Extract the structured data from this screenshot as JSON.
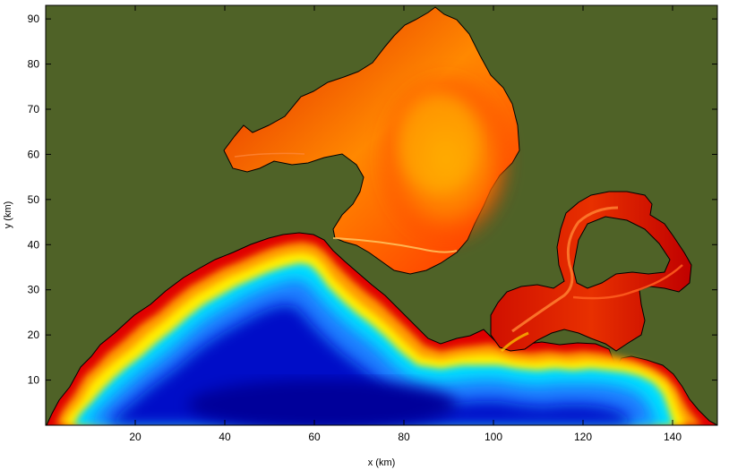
{
  "chart_data": {
    "type": "heatmap",
    "title": "",
    "xlabel": "x (km)",
    "ylabel": "y (km)",
    "xlim": [
      0,
      150
    ],
    "ylim": [
      0,
      93
    ],
    "xticks": [
      20,
      40,
      60,
      80,
      100,
      120,
      140
    ],
    "yticks": [
      10,
      20,
      30,
      40,
      50,
      60,
      70,
      80,
      90
    ],
    "grid": false,
    "legend": "none",
    "colors": {
      "land": "#4f6227",
      "deep": "#0000b8",
      "mid": "#1e90ff",
      "shallow": "#00e5ff",
      "transition": "#ffff00",
      "coast": "#ff2000",
      "bay": "#ff8c00",
      "outline": "#000000"
    }
  }
}
